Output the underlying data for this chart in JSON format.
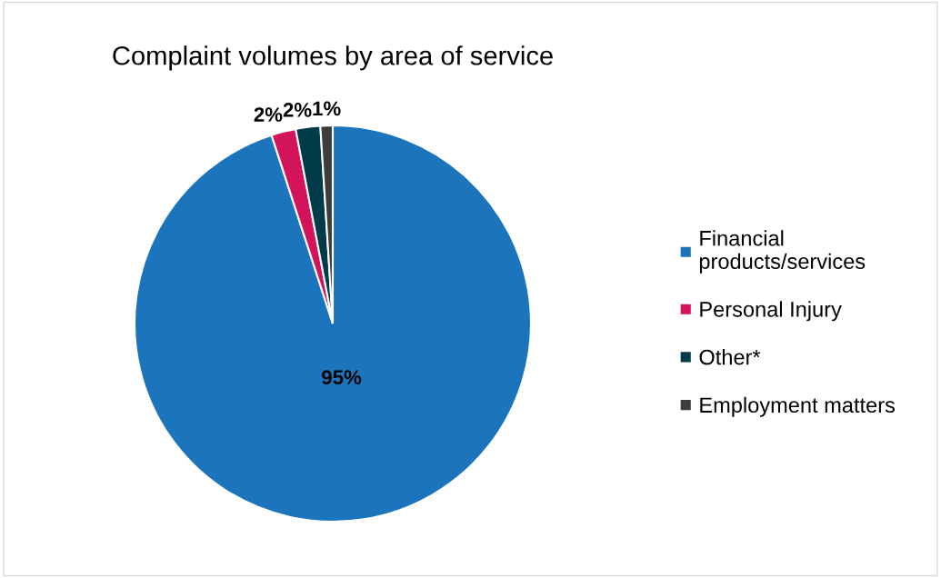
{
  "chart_data": {
    "type": "pie",
    "title": "Complaint volumes by area of service",
    "categories": [
      "Financial products/services",
      "Personal Injury",
      "Other*",
      "Employment matters"
    ],
    "values": [
      95,
      2,
      2,
      1
    ],
    "colors": [
      "#1c75bc",
      "#d4145a",
      "#003b4a",
      "#3d3d3d"
    ],
    "value_labels": [
      "95%",
      "2%",
      "2%",
      "1%"
    ],
    "legend": "right"
  }
}
